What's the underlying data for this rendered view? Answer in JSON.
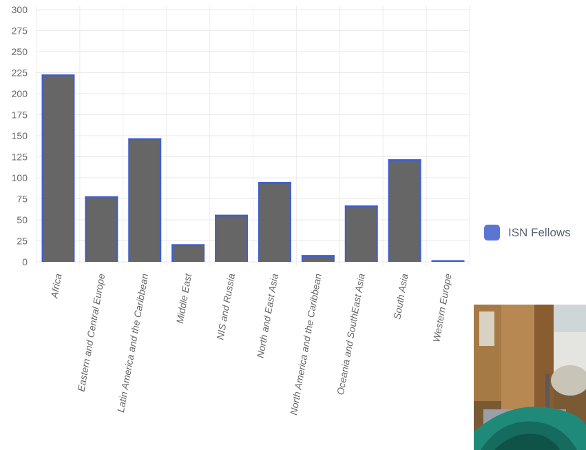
{
  "chart_data": {
    "type": "bar",
    "categories": [
      "Africa",
      "Eastern and Central Europe",
      "Latin America and the Caribbean",
      "Middle East",
      "NIS and Russia",
      "North and East Asia",
      "North America and the Caribbean",
      "Oceania and SouthEast Asia",
      "South Asia",
      "Western Europe"
    ],
    "series": [
      {
        "name": "ISN Fellows",
        "values": [
          223,
          78,
          147,
          21,
          56,
          95,
          8,
          67,
          122,
          2
        ]
      }
    ],
    "ylim": [
      0,
      300
    ],
    "yticks": [
      0,
      25,
      50,
      75,
      100,
      125,
      150,
      175,
      200,
      225,
      250,
      275,
      300
    ],
    "grid": true,
    "legend_position": "right",
    "bar_color": "#666666",
    "bar_border_color": "#3d5fd6"
  },
  "legend": {
    "label": "ISN Fellows",
    "swatch_color": "#5b75d3"
  },
  "photo": {
    "icon": "photo-thumbnail"
  }
}
